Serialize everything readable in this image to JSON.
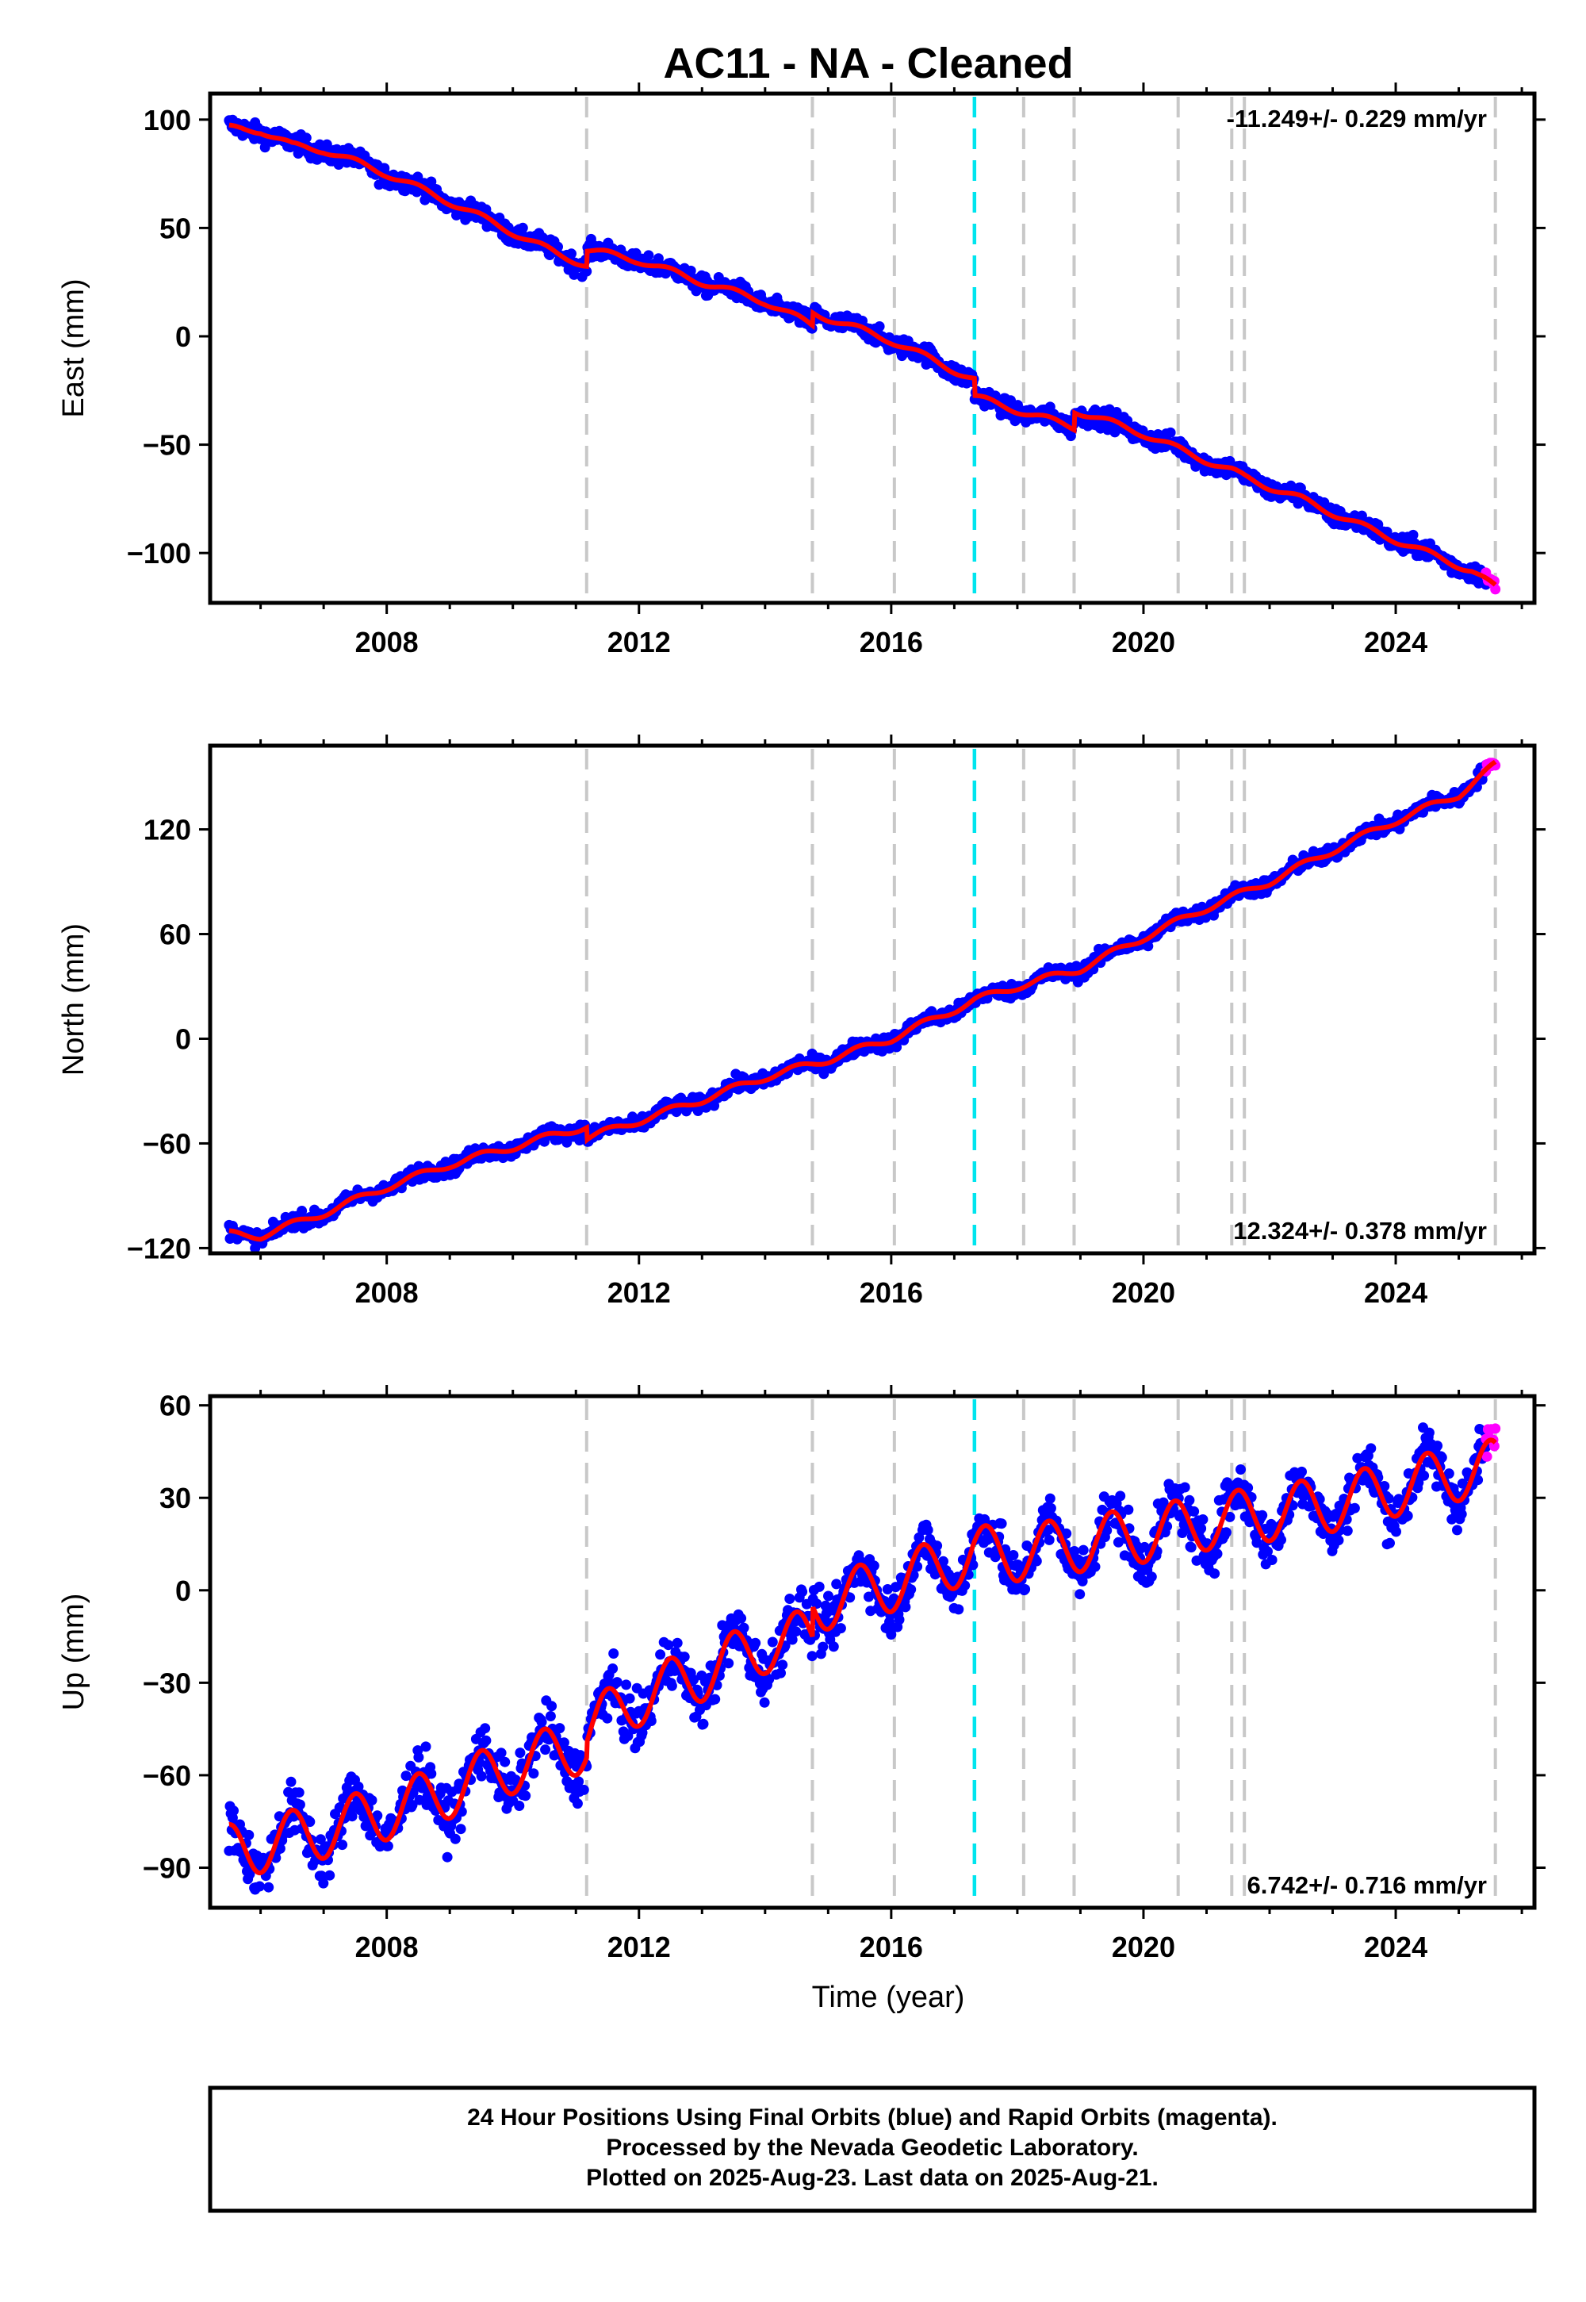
{
  "title": "AC11  - NA - Cleaned",
  "chart_data": [
    {
      "type": "scatter",
      "panel": "east",
      "ylabel": "East (mm)",
      "xlabel": "",
      "xlim": [
        2005.2,
        2026.2
      ],
      "ylim": [
        -123,
        112
      ],
      "yticks": [
        -100,
        -50,
        0,
        50,
        100
      ],
      "ytick_labels": [
        "−100",
        "−50",
        "0",
        "50",
        "100"
      ],
      "xticks": [
        2008,
        2012,
        2016,
        2020,
        2024
      ],
      "xtick_labels": [
        "2008",
        "2012",
        "2016",
        "2020",
        "2024"
      ],
      "rate_label": "-11.249+/- 0.229 mm/yr",
      "rate_position": "top-right",
      "trend": [
        [
          2005.5,
          96
        ],
        [
          2006,
          95
        ],
        [
          2006.5,
          88
        ],
        [
          2007,
          86
        ],
        [
          2008,
          75
        ],
        [
          2009,
          62
        ],
        [
          2010,
          48
        ],
        [
          2010.7,
          38
        ],
        [
          2011.17,
          33
        ],
        [
          2011.17,
          40
        ],
        [
          2012,
          35
        ],
        [
          2013,
          25
        ],
        [
          2014,
          16
        ],
        [
          2014.75,
          5
        ],
        [
          2014.75,
          11
        ],
        [
          2016,
          -2
        ],
        [
          2017.32,
          -20
        ],
        [
          2017.32,
          -28
        ],
        [
          2018.1,
          -35
        ],
        [
          2018.9,
          -42
        ],
        [
          2018.9,
          -34
        ],
        [
          2020,
          -45
        ],
        [
          2020.55,
          -52
        ],
        [
          2021.4,
          -62
        ],
        [
          2021.6,
          -65
        ],
        [
          2022.5,
          -75
        ],
        [
          2023.5,
          -88
        ],
        [
          2024.5,
          -100
        ],
        [
          2025.2,
          -108
        ],
        [
          2025.58,
          -116
        ]
      ],
      "trend_amplitude": 1.5,
      "scatter_noise": 3,
      "steps": [
        2011.17,
        2014.75,
        2016.05,
        2017.32,
        2018.1,
        2018.9,
        2020.55,
        2021.4,
        2021.6,
        2025.58
      ],
      "highlight_step": 2017.32,
      "series": [
        {
          "name": "Final Orbits",
          "color": "#0000ff"
        },
        {
          "name": "Rapid Orbits",
          "color": "#ff00ff"
        },
        {
          "name": "Model",
          "color": "#ff0000"
        }
      ]
    },
    {
      "type": "scatter",
      "panel": "north",
      "ylabel": "North (mm)",
      "xlabel": "",
      "xlim": [
        2005.2,
        2026.2
      ],
      "ylim": [
        -123,
        168
      ],
      "yticks": [
        -120,
        -60,
        0,
        60,
        120
      ],
      "ytick_labels": [
        "−120",
        "−60",
        "0",
        "60",
        "120"
      ],
      "xticks": [
        2008,
        2012,
        2016,
        2020,
        2024
      ],
      "xtick_labels": [
        "2008",
        "2012",
        "2016",
        "2020",
        "2024"
      ],
      "rate_label": "12.324+/- 0.378 mm/yr",
      "rate_position": "bottom-right",
      "trend": [
        [
          2005.5,
          -112
        ],
        [
          2006,
          -113
        ],
        [
          2007,
          -100
        ],
        [
          2008,
          -85
        ],
        [
          2009,
          -72
        ],
        [
          2010,
          -62
        ],
        [
          2011.17,
          -50
        ],
        [
          2011.17,
          -57
        ],
        [
          2012,
          -47
        ],
        [
          2013,
          -35
        ],
        [
          2014,
          -22
        ],
        [
          2015,
          -12
        ],
        [
          2016,
          0
        ],
        [
          2017.32,
          22
        ],
        [
          2018,
          30
        ],
        [
          2019,
          40
        ],
        [
          2020,
          58
        ],
        [
          2021,
          75
        ],
        [
          2022,
          90
        ],
        [
          2023,
          108
        ],
        [
          2024,
          125
        ],
        [
          2025,
          140
        ],
        [
          2025.58,
          157
        ]
      ],
      "trend_amplitude": 2,
      "scatter_noise": 3,
      "steps": [
        2011.17,
        2014.75,
        2016.05,
        2017.32,
        2018.1,
        2018.9,
        2020.55,
        2021.4,
        2021.6,
        2025.58
      ],
      "highlight_step": 2017.32,
      "series": [
        {
          "name": "Final Orbits",
          "color": "#0000ff"
        },
        {
          "name": "Rapid Orbits",
          "color": "#ff00ff"
        },
        {
          "name": "Model",
          "color": "#ff0000"
        }
      ]
    },
    {
      "type": "scatter",
      "panel": "up",
      "ylabel": "Up (mm)",
      "xlabel": "Time (year)",
      "xlim": [
        2005.2,
        2026.2
      ],
      "ylim": [
        -103,
        63
      ],
      "yticks": [
        -90,
        -60,
        -30,
        0,
        30,
        60
      ],
      "ytick_labels": [
        "−90",
        "−60",
        "−30",
        "0",
        "30",
        "60"
      ],
      "xticks": [
        2008,
        2012,
        2016,
        2020,
        2024
      ],
      "xtick_labels": [
        "2008",
        "2012",
        "2016",
        "2020",
        "2024"
      ],
      "rate_label": "6.742+/- 0.716 mm/yr",
      "rate_position": "bottom-right",
      "trend": [
        [
          2005.5,
          -85
        ],
        [
          2007,
          -78
        ],
        [
          2008,
          -72
        ],
        [
          2009,
          -65
        ],
        [
          2010,
          -57
        ],
        [
          2011.17,
          -50
        ],
        [
          2011.17,
          -45
        ],
        [
          2012,
          -35
        ],
        [
          2013,
          -27
        ],
        [
          2014,
          -18
        ],
        [
          2014.75,
          -15
        ],
        [
          2014.75,
          -5
        ],
        [
          2016,
          2
        ],
        [
          2017.32,
          12
        ],
        [
          2018,
          12
        ],
        [
          2019,
          15
        ],
        [
          2020,
          18
        ],
        [
          2021,
          22
        ],
        [
          2022,
          25
        ],
        [
          2023,
          28
        ],
        [
          2024,
          33
        ],
        [
          2025,
          38
        ],
        [
          2025.58,
          40
        ]
      ],
      "trend_amplitude": 9,
      "scatter_noise": 6,
      "steps": [
        2011.17,
        2014.75,
        2016.05,
        2017.32,
        2018.1,
        2018.9,
        2020.55,
        2021.4,
        2021.6,
        2025.58
      ],
      "highlight_step": 2017.32,
      "series": [
        {
          "name": "Final Orbits",
          "color": "#0000ff"
        },
        {
          "name": "Rapid Orbits",
          "color": "#ff00ff"
        },
        {
          "name": "Model",
          "color": "#ff0000"
        }
      ]
    }
  ],
  "footer": {
    "line1": "24 Hour Positions Using Final Orbits (blue) and Rapid Orbits (magenta).",
    "line2": "Processed by the Nevada Geodetic Laboratory.",
    "line3": "Plotted on 2025-Aug-23. Last data on 2025-Aug-21."
  },
  "colors": {
    "final": "#0000ff",
    "rapid": "#ff00ff",
    "model": "#ff0000",
    "step": "#c8c8c8",
    "highlight_step": "#00e5ee"
  }
}
